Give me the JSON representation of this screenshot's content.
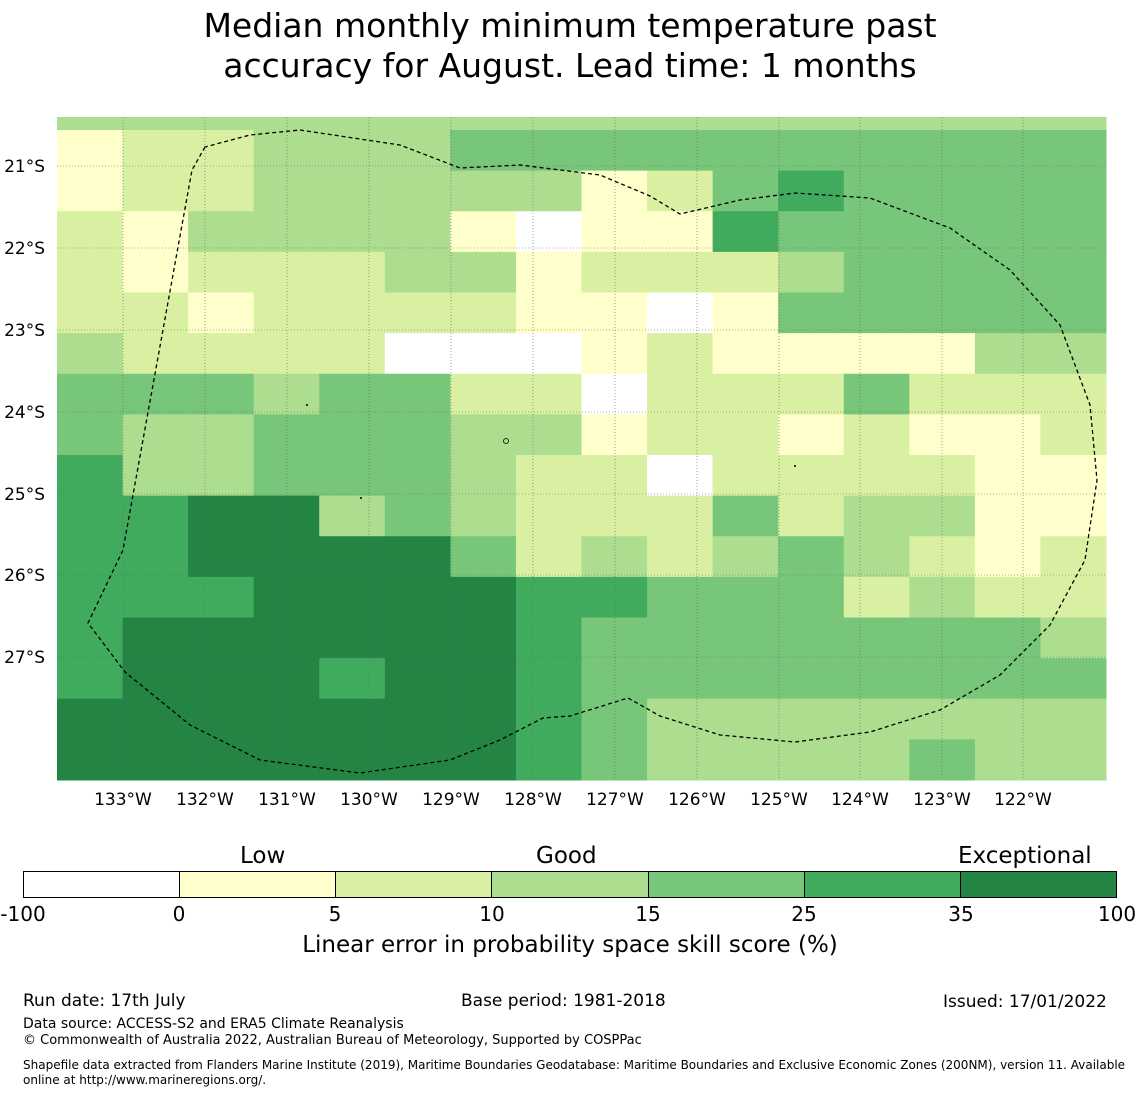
{
  "title_line1": "Median monthly minimum temperature past",
  "title_line2": "accuracy for August. Lead time: 1 months",
  "map": {
    "lat_labels": [
      "21°S",
      "22°S",
      "23°S",
      "24°S",
      "25°S",
      "26°S",
      "27°S"
    ],
    "lon_labels": [
      "133°W",
      "132°W",
      "131°W",
      "130°W",
      "129°W",
      "128°W",
      "127°W",
      "126°W",
      "125°W",
      "124°W",
      "123°W",
      "122°W"
    ],
    "grid_cells": [
      "3333333333333333",
      "1223334444444444",
      "1223333312454444",
      "2133331011544444",
      "2122233122234444",
      "2212222110144444",
      "3222200012111133",
      "4443442202224222",
      "4334443312212112",
      "5334443220222211",
      "5566343222423311",
      "5566664232343212",
      "5556666554442322",
      "5666666544444443",
      "5666566544444444",
      "6666666543333333",
      "6666666543333433"
    ]
  },
  "legend": {
    "categories": [
      "Low",
      "Good",
      "Exceptional"
    ],
    "ticks": [
      "-100",
      "0",
      "5",
      "10",
      "15",
      "25",
      "35",
      "100"
    ],
    "colors": [
      "#ffffff",
      "#ffffcc",
      "#d9f0a3",
      "#addd8e",
      "#78c679",
      "#41ab5d",
      "#238443"
    ],
    "title": "Linear error in probability space skill score (%)"
  },
  "footer": {
    "run_date": "Run date: 17th July",
    "base_period": "Base period: 1981-2018",
    "issued": "Issued: 17/01/2022",
    "data_source": "Data source: ACCESS-S2 and ERA5 Climate Reanalysis",
    "copyright": "© Commonwealth of Australia 2022, Australian Bureau of Meteorology, Supported by COSPPac",
    "shapefile": "Shapefile data extracted from Flanders Marine Institute (2019), Maritime Boundaries Geodatabase: Maritime Boundaries and Exclusive Economic Zones (200NM), version 11. Available online at http://www.marineregions.org/."
  }
}
